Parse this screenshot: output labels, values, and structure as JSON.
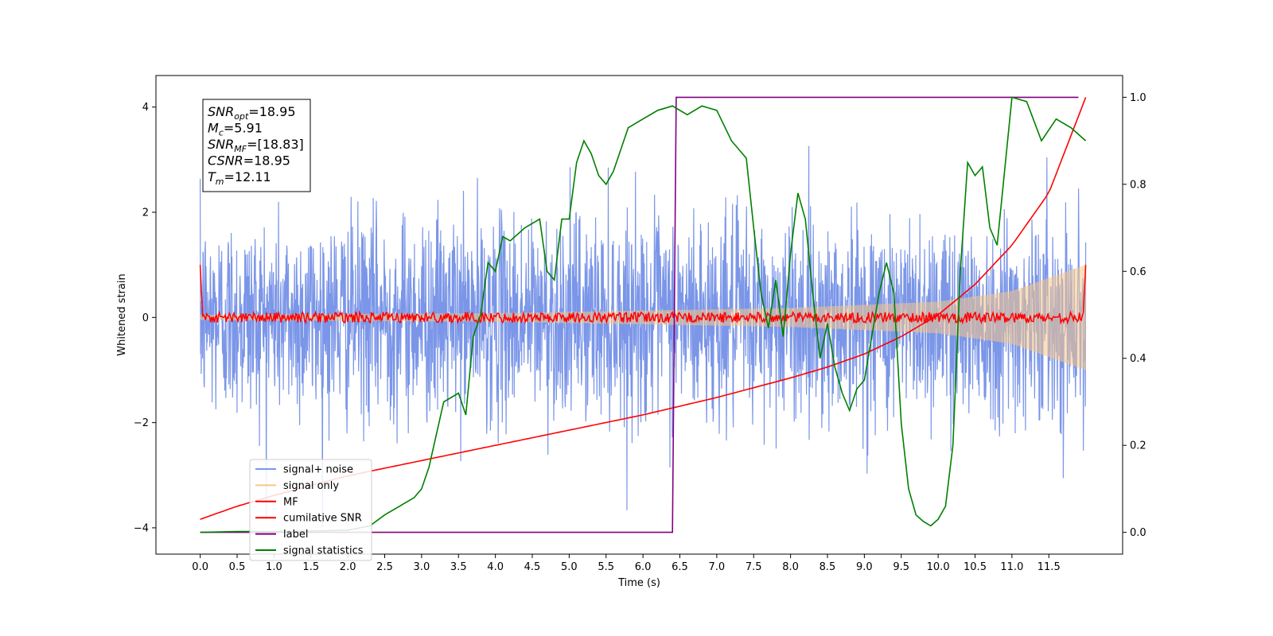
{
  "chart_data": {
    "type": "line",
    "title": "",
    "xlabel": "Time (s)",
    "ylabel": "Whitened strain",
    "xlim": [
      -0.6,
      12.5
    ],
    "ylim": [
      -4.5,
      4.6
    ],
    "y2lim": [
      -0.05,
      1.05
    ],
    "grid": false,
    "legend_position": "bottom-left",
    "x_ticks": [
      "0.0",
      "0.5",
      "1.0",
      "1.5",
      "2.0",
      "2.5",
      "3.0",
      "3.5",
      "4.0",
      "4.5",
      "5.0",
      "5.5",
      "6.0",
      "6.5",
      "7.0",
      "7.5",
      "8.0",
      "8.5",
      "9.0",
      "9.5",
      "10.0",
      "10.5",
      "11.0",
      "11.5"
    ],
    "y_ticks": [
      "−4",
      "−2",
      "0",
      "2",
      "4"
    ],
    "y2_ticks": [
      "0.0",
      "0.2",
      "0.4",
      "0.6",
      "0.8",
      "1.0"
    ],
    "info_box": [
      {
        "label": "SNR",
        "sub": "opt",
        "value": "=18.95"
      },
      {
        "label": "M",
        "sub": "c",
        "value": "=5.91"
      },
      {
        "label": "SNR",
        "sub": "MF",
        "value": "=[18.83]"
      },
      {
        "label": "CSNR",
        "sub": "",
        "value": "=18.95"
      },
      {
        "label": "T",
        "sub": "m",
        "value": "=12.11"
      }
    ],
    "series": [
      {
        "name": "signal+ noise",
        "color": "#7b96e8",
        "axis": "left",
        "kind": "noise",
        "amplitude_approx": 2.6,
        "x_range": [
          0,
          12
        ]
      },
      {
        "name": "signal only",
        "color": "#f5c78a",
        "axis": "left",
        "kind": "chirp",
        "envelope": {
          "x": [
            0,
            4,
            8,
            10,
            11,
            12
          ],
          "amp": [
            0.05,
            0.08,
            0.18,
            0.3,
            0.5,
            1.0
          ]
        }
      },
      {
        "name": "MF",
        "color": "#ff0000",
        "axis": "left",
        "kind": "mf",
        "start": 1.0,
        "end": 1.0,
        "noise_amplitude": 0.1
      },
      {
        "name": "cumilative SNR",
        "color": "#ff0000",
        "axis": "right",
        "x": [
          0,
          0.5,
          1,
          2,
          3,
          4,
          5,
          6,
          7,
          8,
          8.5,
          9,
          9.5,
          10,
          10.5,
          11,
          11.5,
          12
        ],
        "y": [
          0.03,
          0.06,
          0.085,
          0.13,
          0.165,
          0.2,
          0.235,
          0.27,
          0.31,
          0.355,
          0.38,
          0.41,
          0.45,
          0.5,
          0.57,
          0.66,
          0.78,
          1.0
        ]
      },
      {
        "name": "label",
        "color": "#800080",
        "axis": "right",
        "x": [
          0,
          6.4,
          6.45,
          11.9
        ],
        "y": [
          0.0,
          0.0,
          1.0,
          1.0
        ]
      },
      {
        "name": "signal statistics",
        "color": "#008000",
        "axis": "right",
        "x": [
          0,
          0.5,
          1.0,
          1.5,
          2.0,
          2.3,
          2.5,
          2.7,
          2.9,
          3.0,
          3.1,
          3.3,
          3.5,
          3.6,
          3.7,
          3.8,
          3.9,
          4.0,
          4.1,
          4.2,
          4.4,
          4.6,
          4.7,
          4.8,
          4.9,
          5.0,
          5.1,
          5.2,
          5.3,
          5.4,
          5.5,
          5.6,
          5.7,
          5.8,
          6.0,
          6.2,
          6.4,
          6.6,
          6.8,
          7.0,
          7.2,
          7.4,
          7.5,
          7.6,
          7.7,
          7.8,
          7.9,
          8.0,
          8.1,
          8.2,
          8.3,
          8.4,
          8.5,
          8.6,
          8.7,
          8.8,
          8.9,
          9.0,
          9.1,
          9.2,
          9.3,
          9.4,
          9.5,
          9.6,
          9.7,
          9.8,
          9.9,
          10.0,
          10.1,
          10.2,
          10.3,
          10.4,
          10.5,
          10.6,
          10.7,
          10.8,
          11.0,
          11.2,
          11.4,
          11.6,
          11.8,
          12.0
        ],
        "y": [
          0.0,
          0.002,
          0.002,
          0.003,
          0.005,
          0.015,
          0.04,
          0.06,
          0.08,
          0.1,
          0.15,
          0.3,
          0.32,
          0.27,
          0.45,
          0.5,
          0.62,
          0.6,
          0.68,
          0.67,
          0.7,
          0.72,
          0.6,
          0.58,
          0.72,
          0.72,
          0.85,
          0.9,
          0.87,
          0.82,
          0.8,
          0.83,
          0.88,
          0.93,
          0.95,
          0.97,
          0.98,
          0.96,
          0.98,
          0.97,
          0.9,
          0.86,
          0.7,
          0.55,
          0.47,
          0.58,
          0.45,
          0.64,
          0.78,
          0.72,
          0.55,
          0.4,
          0.48,
          0.38,
          0.32,
          0.28,
          0.33,
          0.35,
          0.45,
          0.55,
          0.62,
          0.55,
          0.25,
          0.1,
          0.04,
          0.025,
          0.015,
          0.03,
          0.06,
          0.2,
          0.6,
          0.85,
          0.82,
          0.84,
          0.7,
          0.66,
          1.0,
          0.99,
          0.9,
          0.95,
          0.93,
          0.9
        ]
      }
    ]
  }
}
